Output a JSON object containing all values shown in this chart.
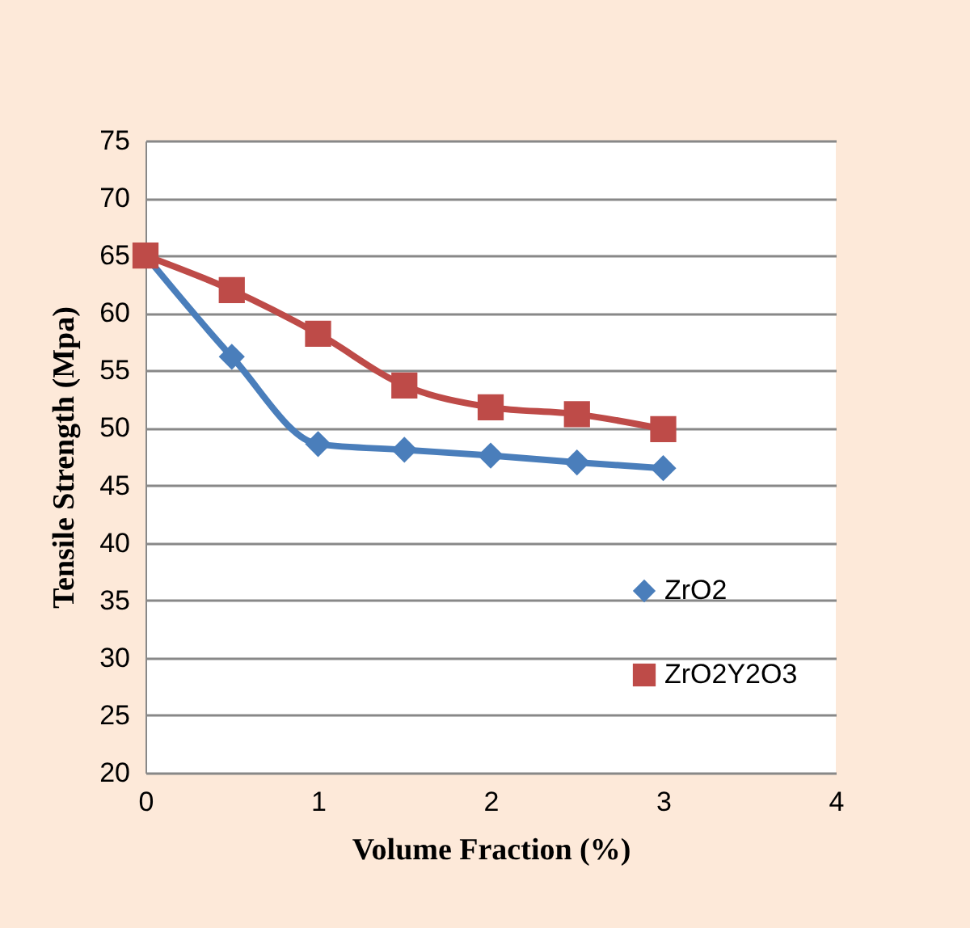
{
  "chart_data": {
    "type": "line",
    "xlabel": "Volume Fraction (%)",
    "ylabel": "Tensile Strength (Mpa)",
    "x": [
      0,
      0.5,
      1,
      1.5,
      2,
      2.5,
      3
    ],
    "series": [
      {
        "name": "ZrO2",
        "color": "#4a7ebb",
        "marker": "diamond",
        "values": [
          65,
          56.2,
          48.6,
          48.1,
          47.6,
          47.0,
          46.5
        ]
      },
      {
        "name": "ZrO2Y2O3",
        "color": "#be4b48",
        "marker": "square",
        "values": [
          65,
          62,
          58.2,
          53.7,
          51.8,
          51.2,
          49.9
        ]
      }
    ],
    "xlim": [
      0,
      4
    ],
    "xticks": [
      0,
      1,
      2,
      3,
      4
    ],
    "ylim": [
      20,
      75
    ],
    "yticks": [
      20,
      25,
      30,
      35,
      40,
      45,
      50,
      55,
      60,
      65,
      70,
      75
    ],
    "grid": "y",
    "legend": "bottom right",
    "line_style": "solid"
  }
}
